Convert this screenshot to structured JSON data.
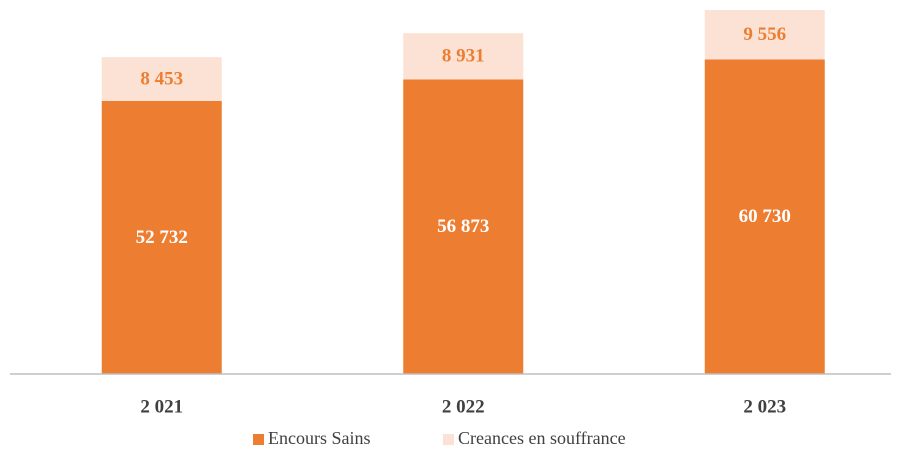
{
  "chart_data": {
    "type": "stacked_bar",
    "categories": [
      "2 021",
      "2 022",
      "2 023"
    ],
    "series": [
      {
        "name": "Encours Sains",
        "color": "#ED7D31",
        "values": [
          52732,
          56873,
          60730
        ],
        "value_labels": [
          "52 732",
          "56 873",
          "60 730"
        ]
      },
      {
        "name": "Creances en souffrance",
        "color": "#FBE2D5",
        "values": [
          8453,
          8931,
          9556
        ],
        "value_labels": [
          "8 453",
          "8 931",
          "9 556"
        ]
      }
    ]
  }
}
